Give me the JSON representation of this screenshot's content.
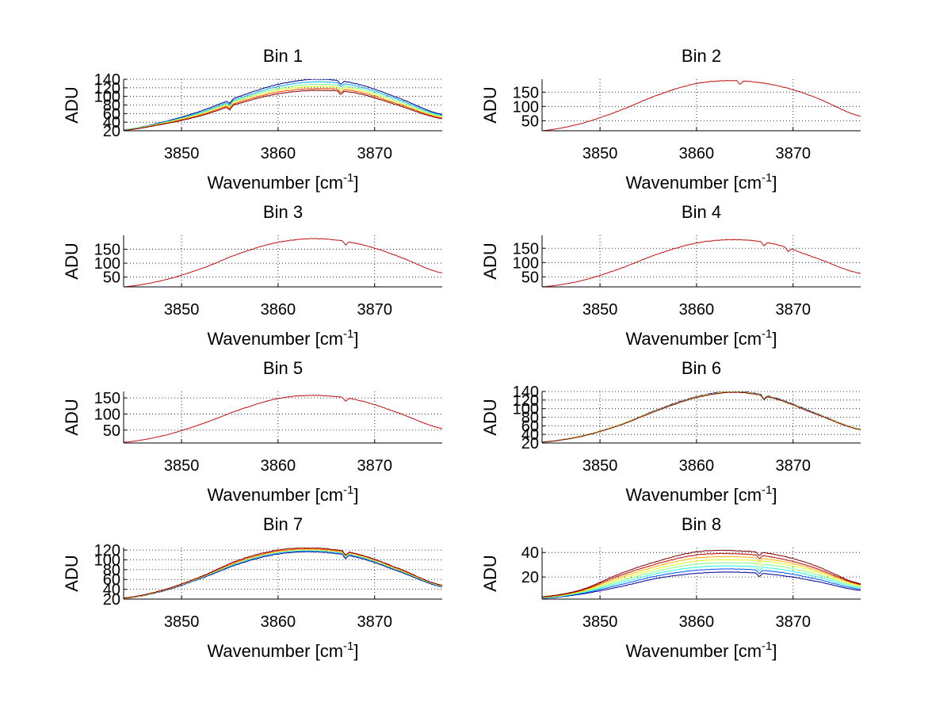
{
  "series_colors": [
    "#00008f",
    "#0050ff",
    "#00b0ff",
    "#20ffe0",
    "#80ff80",
    "#e0ff20",
    "#ffb000",
    "#ff4000",
    "#c00000",
    "#800000"
  ],
  "chart_data": [
    {
      "type": "line",
      "title": "Bin 1",
      "xlabel": "Wavenumber [cm",
      "xlabel_sup": "-1",
      "xlabel_end": "]",
      "ylabel": "ADU",
      "xlim": [
        3844,
        3877
      ],
      "ylim": [
        20,
        140
      ],
      "xticks": [
        3850,
        3860,
        3870
      ],
      "yticks": [
        20,
        40,
        60,
        80,
        100,
        120,
        140
      ],
      "x": [
        3844,
        3848,
        3852,
        3856,
        3860,
        3864,
        3868,
        3872,
        3877
      ],
      "series": [
        {
          "values": [
            22,
            40,
            66,
            100,
            128,
            140,
            130,
            100,
            58
          ]
        },
        {
          "values": [
            22,
            39,
            63,
            96,
            123,
            134,
            125,
            96,
            56
          ]
        },
        {
          "values": [
            22,
            38,
            61,
            93,
            118,
            128,
            120,
            92,
            54
          ]
        },
        {
          "values": [
            21,
            37,
            59,
            90,
            114,
            123,
            116,
            88,
            52
          ]
        },
        {
          "values": [
            21,
            36,
            57,
            87,
            110,
            118,
            112,
            85,
            50
          ]
        },
        {
          "values": [
            21,
            35,
            55,
            84,
            106,
            114,
            108,
            82,
            48
          ]
        }
      ],
      "dips": [
        3855,
        3866.5
      ]
    },
    {
      "type": "line",
      "title": "Bin 2",
      "xlabel": "Wavenumber [cm",
      "xlabel_sup": "-1",
      "xlabel_end": "]",
      "ylabel": "ADU",
      "xlim": [
        3844,
        3877
      ],
      "ylim": [
        15,
        195
      ],
      "xticks": [
        3850,
        3860,
        3870
      ],
      "yticks": [
        50,
        100,
        150
      ],
      "x": [
        3844,
        3848,
        3852,
        3856,
        3860,
        3864,
        3868,
        3872,
        3877
      ],
      "series": [
        {
          "values": [
            15,
            40,
            85,
            140,
            180,
            190,
            175,
            135,
            66
          ]
        }
      ],
      "dips": [
        3864.5
      ]
    },
    {
      "type": "line",
      "title": "Bin 3",
      "xlabel": "Wavenumber [cm",
      "xlabel_sup": "-1",
      "xlabel_end": "]",
      "ylabel": "ADU",
      "xlim": [
        3844,
        3877
      ],
      "ylim": [
        15,
        200
      ],
      "xticks": [
        3850,
        3860,
        3870
      ],
      "yticks": [
        50,
        100,
        150
      ],
      "x": [
        3844,
        3848,
        3852,
        3856,
        3860,
        3864,
        3868,
        3872,
        3877
      ],
      "series": [
        {
          "values": [
            15,
            38,
            80,
            135,
            175,
            188,
            172,
            130,
            65
          ]
        }
      ],
      "dips": [
        3867
      ]
    },
    {
      "type": "line",
      "title": "Bin 4",
      "xlabel": "Wavenumber [cm",
      "xlabel_sup": "-1",
      "xlabel_end": "]",
      "ylabel": "ADU",
      "xlim": [
        3844,
        3877
      ],
      "ylim": [
        15,
        195
      ],
      "xticks": [
        3850,
        3860,
        3870
      ],
      "yticks": [
        50,
        100,
        150
      ],
      "x": [
        3844,
        3848,
        3852,
        3856,
        3860,
        3864,
        3868,
        3872,
        3877
      ],
      "series": [
        {
          "values": [
            15,
            36,
            78,
            130,
            168,
            180,
            165,
            120,
            62
          ]
        }
      ],
      "dips": [
        3867,
        3869.5
      ]
    },
    {
      "type": "line",
      "title": "Bin 5",
      "xlabel": "Wavenumber [cm",
      "xlabel_sup": "-1",
      "xlabel_end": "]",
      "ylabel": "ADU",
      "xlim": [
        3844,
        3877
      ],
      "ylim": [
        10,
        170
      ],
      "xticks": [
        3850,
        3860,
        3870
      ],
      "yticks": [
        50,
        100,
        150
      ],
      "x": [
        3844,
        3848,
        3852,
        3856,
        3860,
        3864,
        3868,
        3872,
        3877
      ],
      "series": [
        {
          "values": [
            12,
            32,
            68,
            113,
            148,
            158,
            145,
            108,
            55
          ]
        }
      ],
      "dips": [
        3867
      ]
    },
    {
      "type": "line",
      "title": "Bin 6",
      "xlabel": "Wavenumber [cm",
      "xlabel_sup": "-1",
      "xlabel_end": "]",
      "ylabel": "ADU",
      "xlim": [
        3844,
        3877
      ],
      "ylim": [
        20,
        140
      ],
      "xticks": [
        3850,
        3860,
        3870
      ],
      "yticks": [
        20,
        40,
        60,
        80,
        100,
        120,
        140
      ],
      "x": [
        3844,
        3848,
        3852,
        3856,
        3860,
        3864,
        3868,
        3872,
        3877
      ],
      "series": [
        {
          "values": [
            22,
            36,
            62,
            98,
            128,
            140,
            126,
            92,
            52
          ]
        },
        {
          "values": [
            22,
            36,
            62,
            97,
            127,
            139,
            125,
            91,
            52
          ]
        },
        {
          "values": [
            22,
            35,
            61,
            96,
            126,
            138,
            124,
            90,
            51
          ]
        }
      ],
      "dips": [
        3867
      ]
    },
    {
      "type": "line",
      "title": "Bin 7",
      "xlabel": "Wavenumber [cm",
      "xlabel_sup": "-1",
      "xlabel_end": "]",
      "ylabel": "ADU",
      "xlim": [
        3844,
        3877
      ],
      "ylim": [
        20,
        125
      ],
      "xticks": [
        3850,
        3860,
        3870
      ],
      "yticks": [
        20,
        40,
        60,
        80,
        100,
        120
      ],
      "x": [
        3844,
        3848,
        3852,
        3856,
        3860,
        3864,
        3868,
        3872,
        3877
      ],
      "series": [
        {
          "values": [
            21,
            36,
            62,
            92,
            112,
            116,
            106,
            80,
            45
          ]
        },
        {
          "values": [
            21,
            37,
            63,
            94,
            114,
            118,
            108,
            82,
            46
          ]
        },
        {
          "values": [
            21,
            37,
            64,
            96,
            116,
            120,
            110,
            83,
            47
          ]
        },
        {
          "values": [
            22,
            38,
            65,
            98,
            118,
            122,
            112,
            85,
            48
          ]
        },
        {
          "values": [
            22,
            38,
            66,
            100,
            120,
            124,
            113,
            86,
            48
          ]
        }
      ],
      "dips": [
        3867
      ]
    },
    {
      "type": "line",
      "title": "Bin 8",
      "xlabel": "Wavenumber [cm",
      "xlabel_sup": "-1",
      "xlabel_end": "]",
      "ylabel": "ADU",
      "xlim": [
        3844,
        3877
      ],
      "ylim": [
        2,
        44
      ],
      "xticks": [
        3850,
        3860,
        3870
      ],
      "yticks": [
        20,
        40
      ],
      "x": [
        3844,
        3848,
        3852,
        3856,
        3860,
        3864,
        3868,
        3872,
        3877
      ],
      "series": [
        {
          "values": [
            2.5,
            6,
            12,
            19,
            23,
            24,
            22,
            17,
            9
          ]
        },
        {
          "values": [
            2.7,
            6.5,
            13.5,
            21,
            25.5,
            26.5,
            24.5,
            19,
            10
          ]
        },
        {
          "values": [
            2.9,
            7,
            15,
            23,
            28,
            29,
            27,
            21,
            11
          ]
        },
        {
          "values": [
            3.1,
            7.5,
            16.5,
            25,
            30.5,
            31.5,
            29.5,
            23,
            12
          ]
        },
        {
          "values": [
            3.3,
            8,
            18,
            27,
            33,
            34,
            32,
            25,
            13
          ]
        },
        {
          "values": [
            3.5,
            8.5,
            19.5,
            29,
            35.5,
            36.5,
            34,
            26.5,
            13.5
          ]
        },
        {
          "values": [
            3.7,
            9,
            21,
            31,
            38,
            39,
            36,
            28,
            14
          ]
        },
        {
          "values": [
            3.9,
            9.5,
            22.5,
            33,
            40.5,
            41.5,
            38.5,
            30,
            14.5
          ]
        }
      ],
      "dips": [
        3866.5
      ]
    }
  ]
}
